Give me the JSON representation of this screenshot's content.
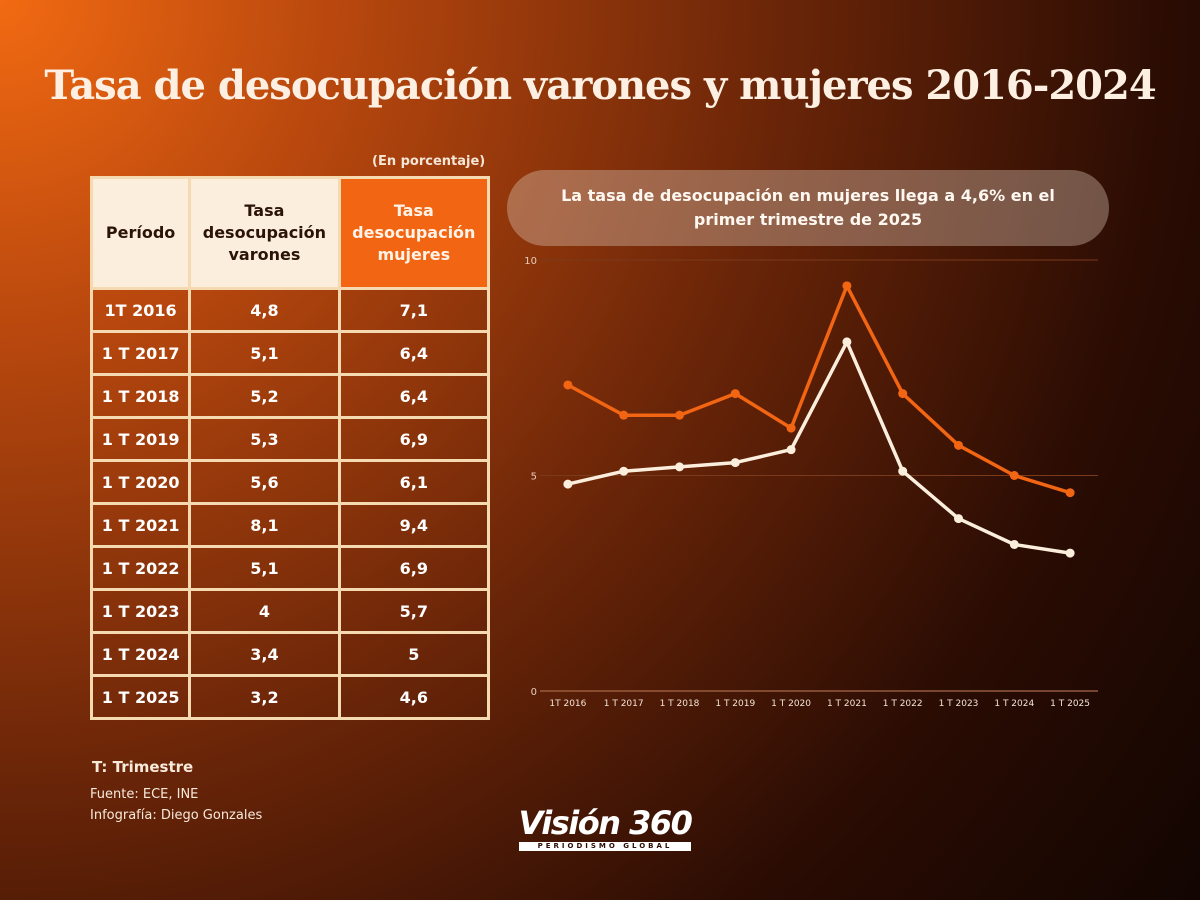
{
  "title": "Tasa de desocupación varones y mujeres 2016-2024",
  "units_note": "(En porcentaje)",
  "table": {
    "headers": [
      "Período",
      "Tasa desocupación varones",
      "Tasa desocupación mujeres"
    ],
    "rows": [
      [
        "1T 2016",
        "4,8",
        "7,1"
      ],
      [
        "1 T 2017",
        "5,1",
        "6,4"
      ],
      [
        "1 T 2018",
        "5,2",
        "6,4"
      ],
      [
        "1 T 2019",
        "5,3",
        "6,9"
      ],
      [
        "1 T 2020",
        "5,6",
        "6,1"
      ],
      [
        "1 T 2021",
        "8,1",
        "9,4"
      ],
      [
        "1 T 2022",
        "5,1",
        "6,9"
      ],
      [
        "1 T 2023",
        "4",
        "5,7"
      ],
      [
        "1 T 2024",
        "3,4",
        "5"
      ],
      [
        "1 T 2025",
        "3,2",
        "4,6"
      ]
    ]
  },
  "callout": "La tasa de desocupación en mujeres llega a 4,6% en el primer trimestre de 2025",
  "notes": {
    "trimestre": "T: Trimestre",
    "fuente": "Fuente: ECE,  INE",
    "infografia": "Infografía: Diego Gonzales"
  },
  "logo": {
    "name": "Visión 360",
    "tagline": "PERIODISMO GLOBAL"
  },
  "colors": {
    "mujeres": "#f26512",
    "varones": "#fbeedc",
    "grid": "#7a3a1c"
  },
  "chart_data": {
    "type": "line",
    "x": [
      "1T 2016",
      "1 T 2017",
      "1 T 2018",
      "1 T 2019",
      "1 T 2020",
      "1 T 2021",
      "1 T 2022",
      "1 T 2023",
      "1 T 2024",
      "1 T 2025"
    ],
    "series": [
      {
        "values": [
          7.1,
          6.4,
          6.4,
          6.9,
          6.1,
          9.4,
          6.9,
          5.7,
          5.0,
          4.6
        ],
        "color": "#f26512"
      },
      {
        "values": [
          4.8,
          5.1,
          5.2,
          5.3,
          5.6,
          8.1,
          5.1,
          4.0,
          3.4,
          3.2
        ],
        "color": "#fbeedc"
      }
    ],
    "yticks": [
      "0",
      "5",
      "10"
    ],
    "ylim": [
      0,
      10
    ],
    "grid": true,
    "legend": "none"
  }
}
